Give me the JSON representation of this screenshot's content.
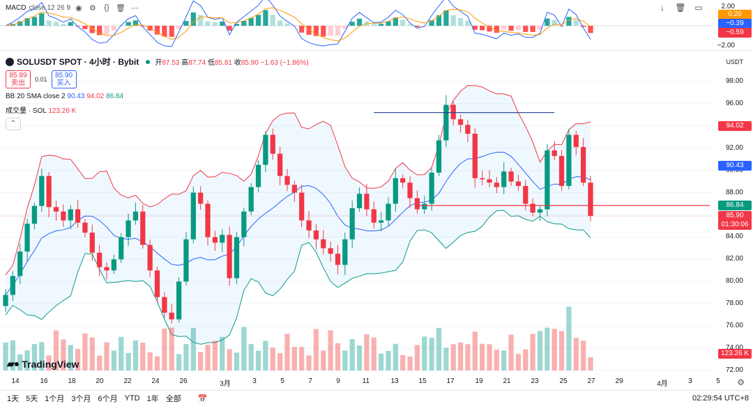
{
  "macd": {
    "label": "MACD",
    "params": "close 12 26 9",
    "axis_ticks": [
      "2.00",
      "−2.00"
    ],
    "tags": [
      {
        "value": "0.20",
        "color": "#ff9800"
      },
      {
        "value": "−0.39",
        "color": "#2962ff"
      },
      {
        "value": "−0.59",
        "color": "#f23645"
      }
    ]
  },
  "main": {
    "symbol": "SOLUSDT SPOT · 4小时 · Bybit",
    "ohlc": {
      "open_label": "开",
      "open": "87.53",
      "high_label": "高",
      "high": "87.74",
      "low_label": "低",
      "low": "85.81",
      "close_label": "收",
      "close": "85.90",
      "change": "−1.63 (−1.86%)"
    },
    "trade": {
      "sell_price": "85.89",
      "sell_label": "卖出",
      "spread": "0.01",
      "buy_price": "85.90",
      "buy_label": "买入"
    },
    "bb_legend": {
      "name": "BB 20 SMA close 2",
      "basis": "90.43",
      "upper": "94.02",
      "lower": "86.84"
    },
    "vol_legend": {
      "name": "成交量 · SOL",
      "value": "123.26 K"
    },
    "currency": "USDT"
  },
  "price_axis": [
    "98.00",
    "96.00",
    "94.00",
    "92.00",
    "90.00",
    "88.00",
    "86.00",
    "84.00",
    "82.00",
    "80.00",
    "78.00",
    "76.00",
    "74.00",
    "72.00"
  ],
  "price_tags": [
    {
      "value": "94.02",
      "color": "#f23645"
    },
    {
      "value": "90.43",
      "color": "#2962ff"
    },
    {
      "value": "86.84",
      "color": "#089981"
    },
    {
      "value": "85.90",
      "color": "#f23645"
    },
    {
      "value": "01:30:06",
      "color": "#f23645"
    },
    {
      "value": "123.26 K",
      "color": "#f23645"
    }
  ],
  "time_axis": [
    "14",
    "16",
    "18",
    "20",
    "22",
    "24",
    "26",
    "3月",
    "3",
    "5",
    "7",
    "9",
    "11",
    "13",
    "15",
    "17",
    "19",
    "21",
    "23",
    "25",
    "27",
    "29",
    "4月",
    "3",
    "5"
  ],
  "bottom": {
    "ranges": [
      "1天",
      "5天",
      "1个月",
      "3个月",
      "6个月",
      "YTD",
      "1年",
      "全部"
    ],
    "clock": "02:29:54 UTC+8",
    "logo": "TradingView"
  },
  "chart_data": {
    "type": "candlestick",
    "title": "SOLUSDT SPOT · 4小时 · Bybit",
    "ylim": [
      72,
      99
    ],
    "close_series_approx": [
      78.8,
      80.5,
      82.7,
      85.2,
      86.8,
      89.5,
      86.7,
      86.3,
      85.5,
      86.5,
      85.3,
      84.4,
      82.6,
      81.3,
      81.0,
      82.0,
      84.0,
      85.5,
      86.3,
      83.3,
      81.0,
      78.6,
      77.2,
      76.6,
      80.0,
      83.8,
      88.0,
      87.0,
      84.0,
      83.5,
      84.2,
      80.3,
      84.0,
      86.3,
      88.5,
      90.5,
      93.2,
      91.5,
      89.5,
      88.7,
      88.0,
      85.5,
      84.6,
      83.8,
      83.0,
      82.5,
      81.5,
      83.8,
      86.6,
      87.9,
      86.5,
      85.3,
      85.5,
      87.0,
      89.3,
      88.9,
      87.5,
      86.5,
      87.0,
      89.8,
      92.7,
      95.9,
      94.6,
      94.1,
      93.3,
      89.3,
      89.2,
      88.9,
      88.5,
      89.9,
      89.0,
      88.6,
      87.0,
      86.2,
      86.5,
      91.8,
      91.3,
      88.6,
      93.2,
      92.1,
      88.9,
      85.9
    ],
    "bollinger": {
      "basis": 90.43,
      "upper": 94.02,
      "lower": 86.84
    },
    "horizontal_lines": [
      95.2,
      86.84
    ],
    "volume_last": "123.26 K"
  }
}
